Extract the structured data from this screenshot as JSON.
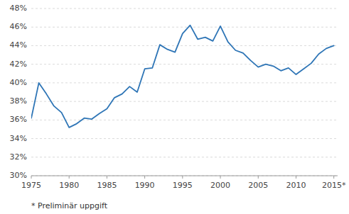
{
  "chart_data": {
    "type": "line",
    "x": [
      1975,
      1976,
      1977,
      1978,
      1979,
      1980,
      1981,
      1982,
      1983,
      1984,
      1985,
      1986,
      1987,
      1988,
      1989,
      1990,
      1991,
      1992,
      1993,
      1994,
      1995,
      1996,
      1997,
      1998,
      1999,
      2000,
      2001,
      2002,
      2003,
      2004,
      2005,
      2006,
      2007,
      2008,
      2009,
      2010,
      2011,
      2012,
      2013,
      2014,
      2015
    ],
    "values": [
      0.362,
      0.4,
      0.388,
      0.375,
      0.368,
      0.352,
      0.356,
      0.362,
      0.361,
      0.367,
      0.372,
      0.384,
      0.388,
      0.396,
      0.39,
      0.415,
      0.416,
      0.441,
      0.436,
      0.433,
      0.453,
      0.462,
      0.447,
      0.449,
      0.445,
      0.461,
      0.444,
      0.435,
      0.432,
      0.424,
      0.417,
      0.42,
      0.418,
      0.413,
      0.416,
      0.409,
      0.415,
      0.421,
      0.431,
      0.437,
      0.44
    ],
    "color": "#2E75B6",
    "xlim": [
      1975,
      2015.5
    ],
    "xticks": [
      1975,
      1980,
      1985,
      1990,
      1995,
      2000,
      2005,
      2010,
      {
        "value": 2015,
        "label": "2015*"
      }
    ],
    "ylim": [
      0.3,
      0.48
    ],
    "yticks": [
      {
        "value": 0.3,
        "label": "30%"
      },
      {
        "value": 0.32,
        "label": "32%"
      },
      {
        "value": 0.34,
        "label": "34%"
      },
      {
        "value": 0.36,
        "label": "36%"
      },
      {
        "value": 0.38,
        "label": "38%"
      },
      {
        "value": 0.4,
        "label": "40%"
      },
      {
        "value": 0.42,
        "label": "42%"
      },
      {
        "value": 0.44,
        "label": "44%"
      },
      {
        "value": 0.46,
        "label": "46%"
      },
      {
        "value": 0.48,
        "label": "48%"
      }
    ],
    "grid": true,
    "annotations": [
      "* Preliminär uppgift"
    ]
  }
}
